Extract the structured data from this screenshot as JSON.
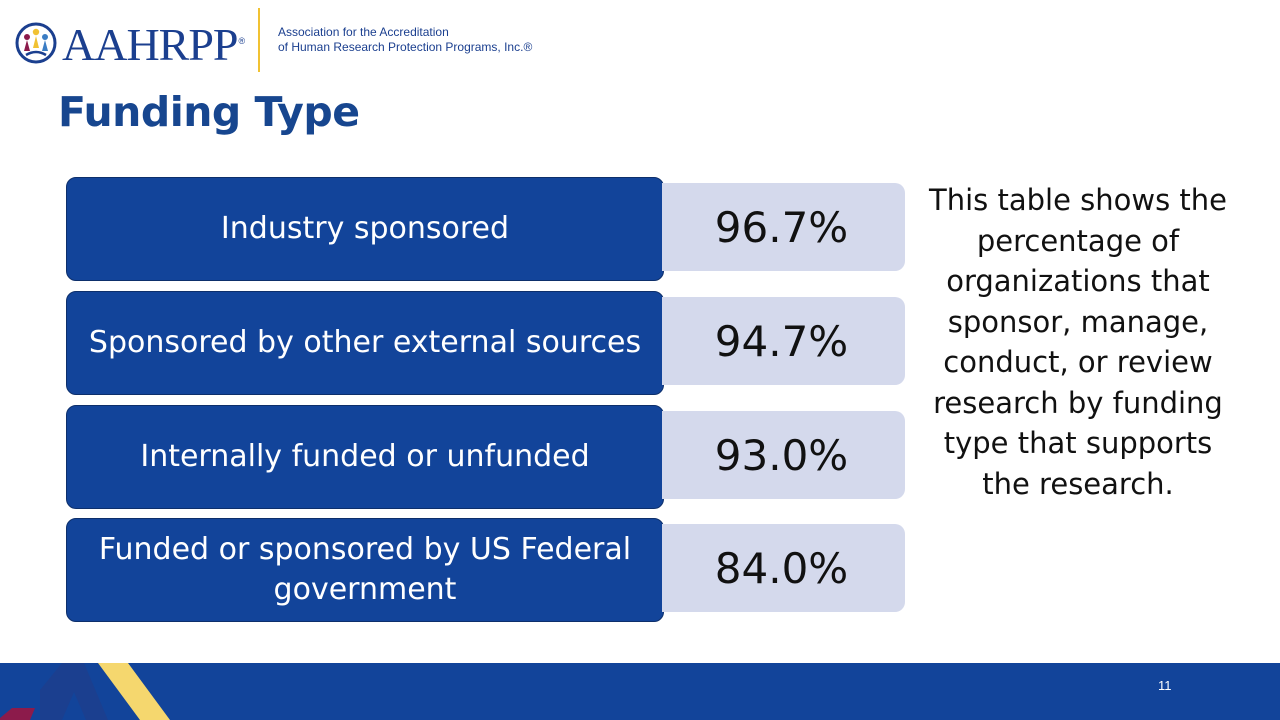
{
  "header": {
    "logo_word": "AAHRPP",
    "logo_registered": "®",
    "tagline_line1": "Association for the Accreditation",
    "tagline_line2": "of Human Research Protection Programs, Inc.®",
    "icon": "people-circle-logo-icon"
  },
  "title": "Funding Type",
  "table": {
    "rows": [
      {
        "label": "Industry sponsored",
        "value": "96.7%"
      },
      {
        "label": "Sponsored by other external sources",
        "value": "94.7%"
      },
      {
        "label": "Internally funded or unfunded",
        "value": "93.0%"
      },
      {
        "label": "Funded or sponsored by US Federal government",
        "value": "84.0%"
      }
    ]
  },
  "description": "This table shows the percentage of organizations that sponsor, manage, conduct, or review research by funding type that supports the research.",
  "footer": {
    "page_number": "11"
  },
  "colors": {
    "brand_blue": "#12449a",
    "value_bg": "#d4d9ec",
    "accent_yellow": "#f5d76e",
    "accent_maroon": "#8c1b4b"
  }
}
